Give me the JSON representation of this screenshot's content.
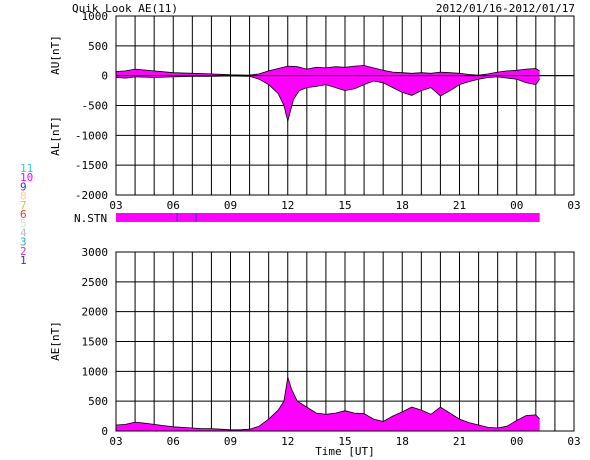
{
  "header": {
    "title": "Quik Look AE(11)",
    "date_range": "2012/01/16-2012/01/17"
  },
  "station_legend": {
    "items": [
      {
        "label": "11",
        "color": "#33cccc"
      },
      {
        "label": "10",
        "color": "#ff00ff"
      },
      {
        "label": "9",
        "color": "#3333cc"
      },
      {
        "label": "8",
        "color": "#ffcc99"
      },
      {
        "label": "7",
        "color": "#cccc33"
      },
      {
        "label": "6",
        "color": "#ff3333"
      },
      {
        "label": "5",
        "color": "#dddddd"
      },
      {
        "label": "4",
        "color": "#bbbbbb"
      },
      {
        "label": "3",
        "color": "#33aaaa"
      },
      {
        "label": "2",
        "color": "#cc33cc"
      },
      {
        "label": "1",
        "color": "#3333cc"
      }
    ]
  },
  "nstn": {
    "label": "N.STN",
    "color": "#ff00ff",
    "start_hour": 3,
    "end_hour": 25.2,
    "markers": [
      {
        "hour": 6.2,
        "color": "#3333cc"
      },
      {
        "hour": 7.2,
        "color": "#3333cc"
      }
    ]
  },
  "chart_data": [
    {
      "type": "area",
      "name": "AU-AL",
      "ylabel_top": "AU[nT]",
      "ylabel_bottom": "AL[nT]",
      "xlabel": "",
      "xlim": [
        3,
        27
      ],
      "ylim": [
        -2000,
        1000
      ],
      "yticks": [
        1000,
        500,
        0,
        -500,
        -1000,
        -1500,
        -2000
      ],
      "xtick_labels": [
        "03",
        "06",
        "09",
        "12",
        "15",
        "18",
        "21",
        "00",
        "03"
      ],
      "xtick_hours": [
        3,
        6,
        9,
        12,
        15,
        18,
        21,
        24,
        27
      ],
      "grid": true,
      "fill_color": "#ff00ff",
      "au": {
        "x": [
          3,
          3.5,
          4,
          5,
          6,
          7,
          8,
          9,
          10,
          10.5,
          11,
          11.5,
          12,
          12.5,
          13,
          13.5,
          14,
          14.5,
          15,
          15.5,
          16,
          16.5,
          17,
          17.5,
          18,
          18.5,
          19,
          19.5,
          20,
          20.5,
          21,
          21.5,
          22,
          22.5,
          23,
          23.5,
          24,
          24.5,
          25,
          25.2
        ],
        "y": [
          70,
          80,
          110,
          80,
          50,
          40,
          30,
          15,
          10,
          30,
          80,
          120,
          160,
          150,
          110,
          140,
          130,
          150,
          140,
          160,
          170,
          130,
          90,
          60,
          50,
          40,
          50,
          40,
          60,
          50,
          40,
          20,
          10,
          30,
          60,
          80,
          90,
          110,
          120,
          80
        ]
      },
      "al": {
        "x": [
          3,
          3.5,
          4,
          5,
          6,
          7,
          8,
          9,
          10,
          10.5,
          11,
          11.5,
          11.8,
          12,
          12.3,
          12.6,
          13,
          13.5,
          14,
          14.5,
          15,
          15.5,
          16,
          16.5,
          17,
          17.5,
          18,
          18.5,
          19,
          19.5,
          20,
          20.5,
          21,
          21.5,
          22,
          22.5,
          23,
          23.5,
          24,
          24.5,
          25,
          25.2
        ],
        "y": [
          -30,
          -40,
          -20,
          -30,
          -20,
          -10,
          -10,
          -5,
          -10,
          -60,
          -150,
          -300,
          -500,
          -760,
          -400,
          -250,
          -200,
          -180,
          -150,
          -200,
          -250,
          -220,
          -150,
          -90,
          -120,
          -200,
          -280,
          -330,
          -250,
          -200,
          -340,
          -250,
          -150,
          -100,
          -60,
          -30,
          -20,
          -40,
          -60,
          -120,
          -150,
          -60
        ]
      }
    },
    {
      "type": "area",
      "name": "AE",
      "ylabel": "AE[nT]",
      "xlabel": "Time [UT]",
      "xlim": [
        3,
        27
      ],
      "ylim": [
        0,
        3000
      ],
      "yticks": [
        3000,
        2500,
        2000,
        1500,
        1000,
        500,
        0
      ],
      "xtick_labels": [
        "03",
        "06",
        "09",
        "12",
        "15",
        "18",
        "21",
        "00",
        "03"
      ],
      "xtick_hours": [
        3,
        6,
        9,
        12,
        15,
        18,
        21,
        24,
        27
      ],
      "grid": true,
      "fill_color": "#ff00ff",
      "ae": {
        "x": [
          3,
          3.5,
          4,
          4.5,
          5,
          5.5,
          6,
          6.5,
          7,
          7.5,
          8,
          8.5,
          9,
          9.5,
          10,
          10.5,
          11,
          11.5,
          11.8,
          12,
          12.2,
          12.5,
          13,
          13.5,
          14,
          14.5,
          15,
          15.5,
          16,
          16.5,
          17,
          17.5,
          18,
          18.5,
          19,
          19.5,
          20,
          20.5,
          21,
          21.5,
          22,
          22.5,
          23,
          23.5,
          24,
          24.5,
          25,
          25.2
        ],
        "y": [
          100,
          110,
          150,
          130,
          110,
          90,
          70,
          60,
          50,
          40,
          40,
          30,
          20,
          20,
          30,
          80,
          200,
          350,
          500,
          900,
          700,
          500,
          400,
          300,
          280,
          300,
          340,
          300,
          290,
          200,
          160,
          250,
          320,
          400,
          350,
          280,
          400,
          300,
          200,
          140,
          100,
          60,
          50,
          80,
          180,
          260,
          270,
          200
        ]
      }
    }
  ]
}
